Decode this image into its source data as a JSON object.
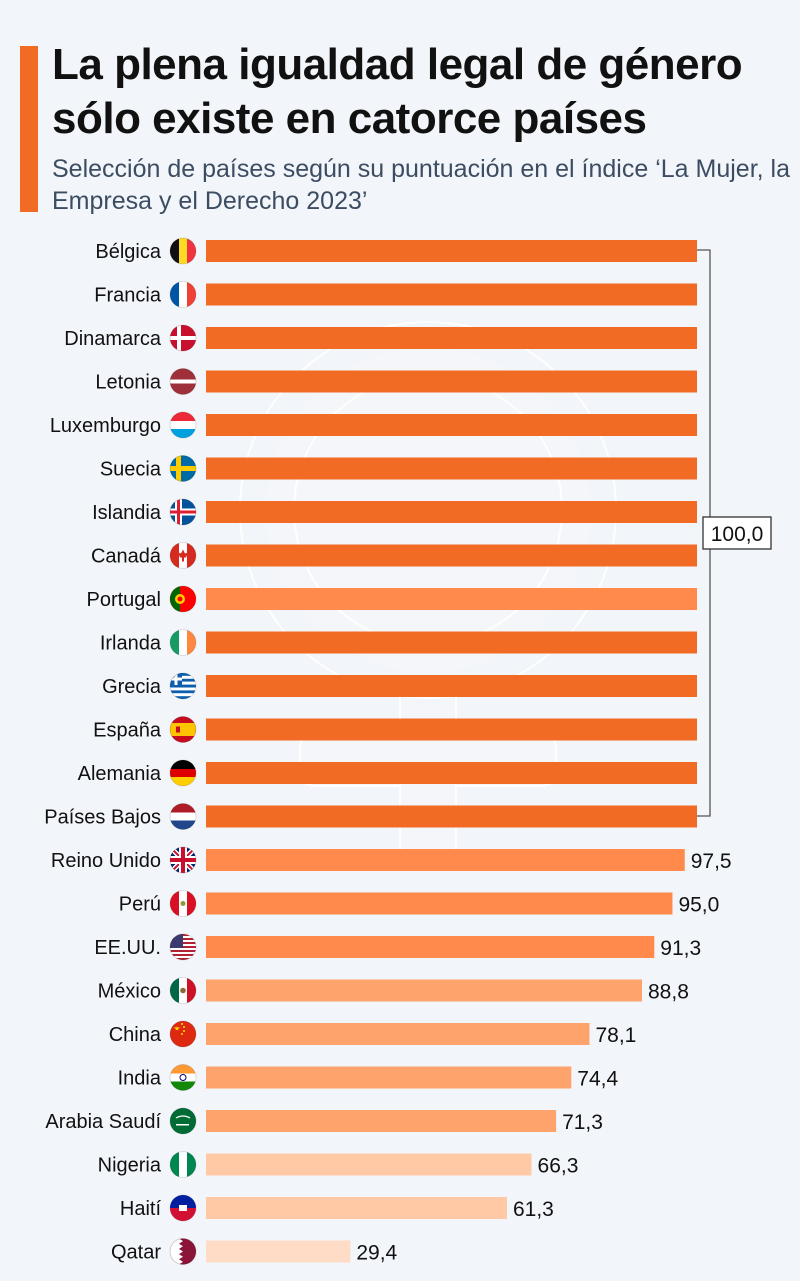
{
  "colors": {
    "accent": "#f26b25",
    "bar_full": "#f26b25",
    "bar_high": "#ff8a4c",
    "bar_mid": "#ffa36c",
    "bar_low": "#ffc9a6",
    "bar_min": "#ffdcc6",
    "background": "#f2f5f9"
  },
  "header": {
    "title": "La plena igualdad legal de género sólo existe en catorce países",
    "subtitle": "Selección de países según su puntuación en el índice ‘La Mujer, la Empresa y el Derecho 2023’"
  },
  "chart_data": {
    "type": "bar",
    "orientation": "horizontal",
    "title": "La plena igualdad legal de género sólo existe en catorce países",
    "subtitle": "Selección de países según su puntuación en el índice ‘La Mujer, la Empresa y el Derecho 2023’",
    "xlim": [
      0,
      100
    ],
    "grouped_label": "100,0",
    "categories": [
      "Bélgica",
      "Francia",
      "Dinamarca",
      "Letonia",
      "Luxemburgo",
      "Suecia",
      "Islandia",
      "Canadá",
      "Portugal",
      "Irlanda",
      "Grecia",
      "España",
      "Alemania",
      "Países Bajos",
      "Reino Unido",
      "Perú",
      "EE.UU.",
      "México",
      "China",
      "India",
      "Arabia Saudí",
      "Nigeria",
      "Haití",
      "Qatar"
    ],
    "values": [
      100,
      100,
      100,
      100,
      100,
      100,
      100,
      100,
      100,
      100,
      100,
      100,
      100,
      100,
      97.5,
      95.0,
      91.3,
      88.8,
      78.1,
      74.4,
      71.3,
      66.3,
      61.3,
      29.4
    ],
    "value_labels": [
      "",
      "",
      "",
      "",
      "",
      "",
      "",
      "",
      "",
      "",
      "",
      "",
      "",
      "",
      "97,5",
      "95,0",
      "91,3",
      "88,8",
      "78,1",
      "74,4",
      "71,3",
      "66,3",
      "61,3",
      "29,4"
    ],
    "flags": [
      "belgium-flag",
      "france-flag",
      "denmark-flag",
      "latvia-flag",
      "luxembourg-flag",
      "sweden-flag",
      "iceland-flag",
      "canada-flag",
      "portugal-flag",
      "ireland-flag",
      "greece-flag",
      "spain-flag",
      "germany-flag",
      "netherlands-flag",
      "uk-flag",
      "peru-flag",
      "usa-flag",
      "mexico-flag",
      "china-flag",
      "india-flag",
      "saudi-arabia-flag",
      "nigeria-flag",
      "haiti-flag",
      "qatar-flag"
    ]
  }
}
